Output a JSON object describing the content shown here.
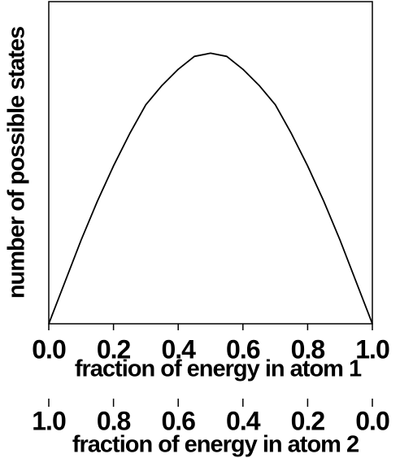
{
  "chart_data": {
    "type": "line",
    "xlabel": "fraction of energy in atom 1",
    "x2label": "fraction of energy in atom 2",
    "ylabel": "number of possible states",
    "x": [
      0,
      0.05,
      0.1,
      0.15,
      0.2,
      0.25,
      0.3,
      0.35,
      0.4,
      0.45,
      0.5,
      0.55,
      0.6,
      0.65,
      0.7,
      0.75,
      0.8,
      0.85,
      0.9,
      0.95,
      1
    ],
    "series": [
      {
        "color": "#000000",
        "values": [
          0,
          0.13,
          0.26,
          0.38,
          0.49,
          0.59,
          0.68,
          0.74,
          0.79,
          0.83,
          0.84,
          0.83,
          0.79,
          0.74,
          0.68,
          0.59,
          0.49,
          0.38,
          0.26,
          0.13,
          0
        ]
      }
    ],
    "xlim": [
      0,
      1
    ],
    "xticks": [
      {
        "value": 0,
        "label": "0.0"
      },
      {
        "value": 0.2,
        "label": "0.2"
      },
      {
        "value": 0.4,
        "label": "0.4"
      },
      {
        "value": 0.6,
        "label": "0.6"
      },
      {
        "value": 0.8,
        "label": "0.8"
      },
      {
        "value": 1,
        "label": "1.0"
      }
    ],
    "x2lim": [
      1,
      0
    ],
    "x2ticks": [
      {
        "value": 1,
        "label": "1.0"
      },
      {
        "value": 0.8,
        "label": "0.8"
      },
      {
        "value": 0.6,
        "label": "0.6"
      },
      {
        "value": 0.4,
        "label": "0.4"
      },
      {
        "value": 0.2,
        "label": "0.2"
      },
      {
        "value": 0,
        "label": "0.0"
      }
    ],
    "ylim": [
      0,
      1
    ],
    "grid": false
  }
}
